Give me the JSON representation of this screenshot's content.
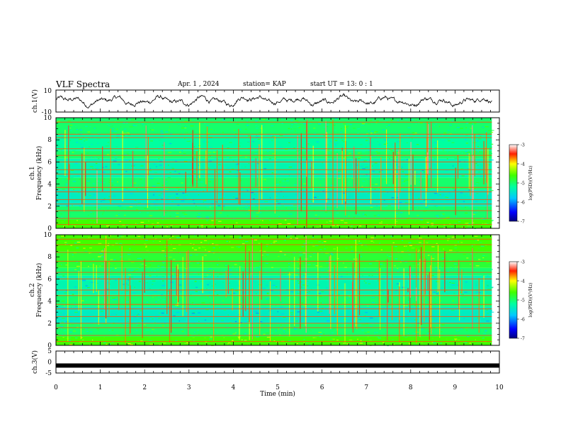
{
  "header": {
    "title": "VLF Spectra",
    "date": "Apr. 1 , 2024",
    "station": "station= KAP",
    "start": "start UT = 13: 0 : 1"
  },
  "chart_data": [
    {
      "type": "line",
      "panel": "ch1-waveform",
      "ylabel": "ch.1(V)",
      "ylim": [
        -10,
        10
      ],
      "ytick_labels": [
        "10",
        "-10"
      ],
      "xlim": [
        0,
        10
      ],
      "data_end_min": 9.83,
      "note_series": "noisy waveform fluctuating roughly between -6 and +6 V"
    },
    {
      "type": "heatmap",
      "panel": "ch1-spectrogram",
      "ylabel_line1": "ch.1",
      "ylabel_line2": "Frequency (kHz)",
      "ylim": [
        0,
        10
      ],
      "ytick_labels": [
        "0",
        "2",
        "4",
        "6",
        "8",
        "10"
      ],
      "xlim": [
        0,
        10
      ],
      "data_end_min": 9.83,
      "colorbar": {
        "label": "log(PSD)(V²/Hz)",
        "range": [
          -7,
          -3
        ],
        "tick_labels": [
          "-3",
          "-4",
          "-5",
          "-6",
          "-7"
        ]
      },
      "bands_khz": [
        {
          "from": 0,
          "to": 0.8,
          "level": -4.6
        },
        {
          "from": 0.8,
          "to": 2.0,
          "level": -5.0
        },
        {
          "from": 2.0,
          "to": 3.5,
          "level": -5.4
        },
        {
          "from": 3.5,
          "to": 4.6,
          "level": -5.0
        },
        {
          "from": 4.6,
          "to": 6.3,
          "level": -5.3
        },
        {
          "from": 6.3,
          "to": 7.0,
          "level": -5.0
        },
        {
          "from": 7.0,
          "to": 8.5,
          "level": -5.2
        },
        {
          "from": 8.5,
          "to": 10,
          "level": -5.0
        }
      ],
      "lines_khz": [
        0.35,
        0.9,
        1.6,
        2.2,
        2.6,
        3.3,
        3.7,
        4.9,
        5.3,
        6.0,
        6.6,
        7.2,
        8.2,
        8.5,
        9.6
      ]
    },
    {
      "type": "heatmap",
      "panel": "ch2-spectrogram",
      "ylabel_line1": "ch.2",
      "ylabel_line2": "Frequency (kHz)",
      "ylim": [
        0,
        10
      ],
      "ytick_labels": [
        "0",
        "2",
        "4",
        "6",
        "8",
        "10"
      ],
      "xlim": [
        0,
        10
      ],
      "data_end_min": 9.83,
      "colorbar": {
        "label": "log(PSD)(V²/Hz)",
        "range": [
          -7,
          -3
        ],
        "tick_labels": [
          "-3",
          "-4",
          "-5",
          "-6",
          "-7"
        ]
      },
      "bands_khz": [
        {
          "from": 0,
          "to": 0.8,
          "level": -4.6
        },
        {
          "from": 0.8,
          "to": 2.0,
          "level": -5.0
        },
        {
          "from": 2.0,
          "to": 3.5,
          "level": -5.4
        },
        {
          "from": 3.5,
          "to": 4.6,
          "level": -5.0
        },
        {
          "from": 4.6,
          "to": 6.3,
          "level": -5.3
        },
        {
          "from": 6.3,
          "to": 7.0,
          "level": -5.0
        },
        {
          "from": 7.0,
          "to": 8.5,
          "level": -4.8
        },
        {
          "from": 8.5,
          "to": 10,
          "level": -4.6
        }
      ],
      "lines_khz": [
        0.35,
        0.9,
        1.6,
        2.0,
        2.6,
        3.3,
        3.7,
        4.5,
        5.0,
        6.0,
        6.6,
        7.6,
        8.4,
        9.1,
        9.6
      ]
    },
    {
      "type": "line",
      "panel": "ch3-waveform",
      "ylabel": "ch.3(V)",
      "ylim": [
        -5,
        5
      ],
      "ytick_labels": [
        "5",
        "0",
        "-5"
      ],
      "xlim": [
        0,
        10
      ],
      "value": -1.6,
      "xlabel": "Time (min)",
      "xtick_labels": [
        "0",
        "1",
        "2",
        "3",
        "4",
        "5",
        "6",
        "7",
        "8",
        "9",
        "10"
      ]
    }
  ]
}
